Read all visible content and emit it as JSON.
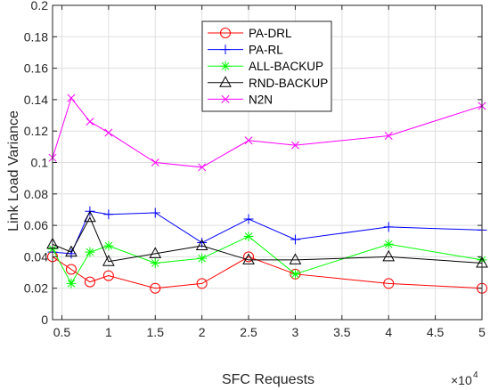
{
  "chart_data": {
    "type": "line",
    "title": "",
    "xlabel": "SFC Requests",
    "ylabel": "Link Load Variance",
    "x_multiplier_label": "×10",
    "x_multiplier_exponent": "4",
    "xlim": [
      0.4,
      5
    ],
    "ylim": [
      0,
      0.2
    ],
    "x_ticks": [
      0.5,
      1,
      1.5,
      2,
      2.5,
      3,
      3.5,
      4,
      4.5,
      5
    ],
    "x_tick_labels": [
      "0.5",
      "1",
      "1.5",
      "2",
      "2.5",
      "3",
      "3.5",
      "4",
      "4.5",
      "5"
    ],
    "y_ticks": [
      0,
      0.02,
      0.04,
      0.06,
      0.08,
      0.1,
      0.12,
      0.14,
      0.16,
      0.18,
      0.2
    ],
    "y_tick_labels": [
      "0",
      "0.02",
      "0.04",
      "0.06",
      "0.08",
      "0.1",
      "0.12",
      "0.14",
      "0.16",
      "0.18",
      "0.2"
    ],
    "grid": true,
    "legend_position": "top-center",
    "series": [
      {
        "name": "PA-DRL",
        "color": "#ff0000",
        "marker": "circle",
        "x": [
          0.4,
          0.6,
          0.8,
          1.0,
          1.5,
          2.0,
          2.5,
          3.0,
          4.0,
          5.0
        ],
        "y": [
          0.04,
          0.032,
          0.024,
          0.028,
          0.02,
          0.023,
          0.04,
          0.029,
          0.023,
          0.02
        ]
      },
      {
        "name": "PA-RL",
        "color": "#0000ff",
        "marker": "plus",
        "x": [
          0.4,
          0.6,
          0.8,
          1.0,
          1.5,
          2.0,
          2.5,
          3.0,
          4.0,
          5.0
        ],
        "y": [
          0.043,
          0.042,
          0.069,
          0.067,
          0.068,
          0.049,
          0.064,
          0.051,
          0.059,
          0.057
        ]
      },
      {
        "name": "ALL-BACKUP",
        "color": "#00ff00",
        "marker": "asterisk",
        "x": [
          0.4,
          0.6,
          0.8,
          1.0,
          1.5,
          2.0,
          2.5,
          3.0,
          4.0,
          5.0
        ],
        "y": [
          0.045,
          0.023,
          0.043,
          0.047,
          0.036,
          0.039,
          0.053,
          0.029,
          0.048,
          0.038
        ]
      },
      {
        "name": "RND-BACKUP",
        "color": "#000000",
        "marker": "triangle",
        "x": [
          0.4,
          0.6,
          0.8,
          1.0,
          1.5,
          2.0,
          2.5,
          3.0,
          4.0,
          5.0
        ],
        "y": [
          0.048,
          0.043,
          0.065,
          0.037,
          0.042,
          0.047,
          0.038,
          0.038,
          0.04,
          0.036
        ]
      },
      {
        "name": "N2N",
        "color": "#ff00ff",
        "marker": "x",
        "x": [
          0.4,
          0.6,
          0.8,
          1.0,
          1.5,
          2.0,
          2.5,
          3.0,
          4.0,
          5.0
        ],
        "y": [
          0.103,
          0.141,
          0.126,
          0.119,
          0.1,
          0.097,
          0.114,
          0.111,
          0.117,
          0.136
        ]
      }
    ]
  }
}
